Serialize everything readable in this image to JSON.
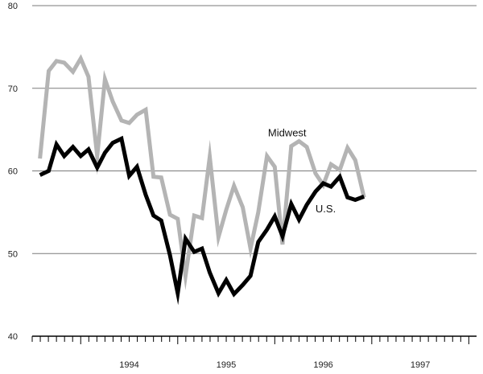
{
  "chart_data": {
    "type": "line",
    "title": "",
    "xlabel": "",
    "ylabel": "",
    "ylim": [
      40,
      80
    ],
    "yticks": [
      40,
      50,
      60,
      70,
      80
    ],
    "xlim": [
      1993.5,
      1998.08
    ],
    "xtick_labels": [
      "1994",
      "1995",
      "1996",
      "1997"
    ],
    "grid": "horizontal",
    "legend": "inline labels",
    "series": [
      {
        "name": "Midwest",
        "color": "#b4b4b4",
        "points": [
          [
            1993.58,
            61.5
          ],
          [
            1993.67,
            72.1
          ],
          [
            1993.75,
            73.3
          ],
          [
            1993.83,
            73.1
          ],
          [
            1993.92,
            72.0
          ],
          [
            1994.0,
            73.6
          ],
          [
            1994.08,
            71.4
          ],
          [
            1994.17,
            61.8
          ],
          [
            1994.25,
            71.1
          ],
          [
            1994.33,
            68.4
          ],
          [
            1994.42,
            66.1
          ],
          [
            1994.5,
            65.8
          ],
          [
            1994.58,
            66.8
          ],
          [
            1994.67,
            67.4
          ],
          [
            1994.75,
            59.3
          ],
          [
            1994.83,
            59.2
          ],
          [
            1994.92,
            54.7
          ],
          [
            1995.0,
            54.2
          ],
          [
            1995.08,
            47.3
          ],
          [
            1995.17,
            54.6
          ],
          [
            1995.25,
            54.3
          ],
          [
            1995.33,
            61.7
          ],
          [
            1995.42,
            52.0
          ],
          [
            1995.5,
            55.3
          ],
          [
            1995.58,
            58.2
          ],
          [
            1995.67,
            55.6
          ],
          [
            1995.75,
            50.6
          ],
          [
            1995.83,
            55.0
          ],
          [
            1995.92,
            61.8
          ],
          [
            1996.0,
            60.5
          ],
          [
            1996.08,
            51.1
          ],
          [
            1996.17,
            63.0
          ],
          [
            1996.25,
            63.6
          ],
          [
            1996.33,
            62.9
          ],
          [
            1996.42,
            59.7
          ],
          [
            1996.5,
            58.3
          ],
          [
            1996.58,
            60.8
          ],
          [
            1996.67,
            60.1
          ],
          [
            1996.75,
            62.8
          ],
          [
            1996.83,
            61.3
          ],
          [
            1996.92,
            56.8
          ]
        ]
      },
      {
        "name": "U.S.",
        "color": "#000000",
        "points": [
          [
            1993.58,
            59.5
          ],
          [
            1993.67,
            60.0
          ],
          [
            1993.75,
            63.2
          ],
          [
            1993.83,
            61.8
          ],
          [
            1993.92,
            62.9
          ],
          [
            1994.0,
            61.8
          ],
          [
            1994.08,
            62.6
          ],
          [
            1994.17,
            60.4
          ],
          [
            1994.25,
            62.2
          ],
          [
            1994.33,
            63.4
          ],
          [
            1994.42,
            63.9
          ],
          [
            1994.5,
            59.4
          ],
          [
            1994.58,
            60.5
          ],
          [
            1994.67,
            57.1
          ],
          [
            1994.75,
            54.6
          ],
          [
            1994.83,
            54.0
          ],
          [
            1994.92,
            49.8
          ],
          [
            1995.0,
            45.2
          ],
          [
            1995.08,
            51.8
          ],
          [
            1995.17,
            50.2
          ],
          [
            1995.25,
            50.6
          ],
          [
            1995.33,
            47.7
          ],
          [
            1995.42,
            45.2
          ],
          [
            1995.5,
            46.8
          ],
          [
            1995.58,
            45.1
          ],
          [
            1995.67,
            46.2
          ],
          [
            1995.75,
            47.3
          ],
          [
            1995.83,
            51.4
          ],
          [
            1995.92,
            52.9
          ],
          [
            1996.0,
            54.5
          ],
          [
            1996.08,
            52.1
          ],
          [
            1996.17,
            56.0
          ],
          [
            1996.25,
            54.1
          ],
          [
            1996.33,
            55.9
          ],
          [
            1996.42,
            57.5
          ],
          [
            1996.5,
            58.5
          ],
          [
            1996.58,
            58.1
          ],
          [
            1996.67,
            59.3
          ],
          [
            1996.75,
            56.8
          ],
          [
            1996.83,
            56.5
          ],
          [
            1996.92,
            56.9
          ]
        ]
      }
    ]
  }
}
